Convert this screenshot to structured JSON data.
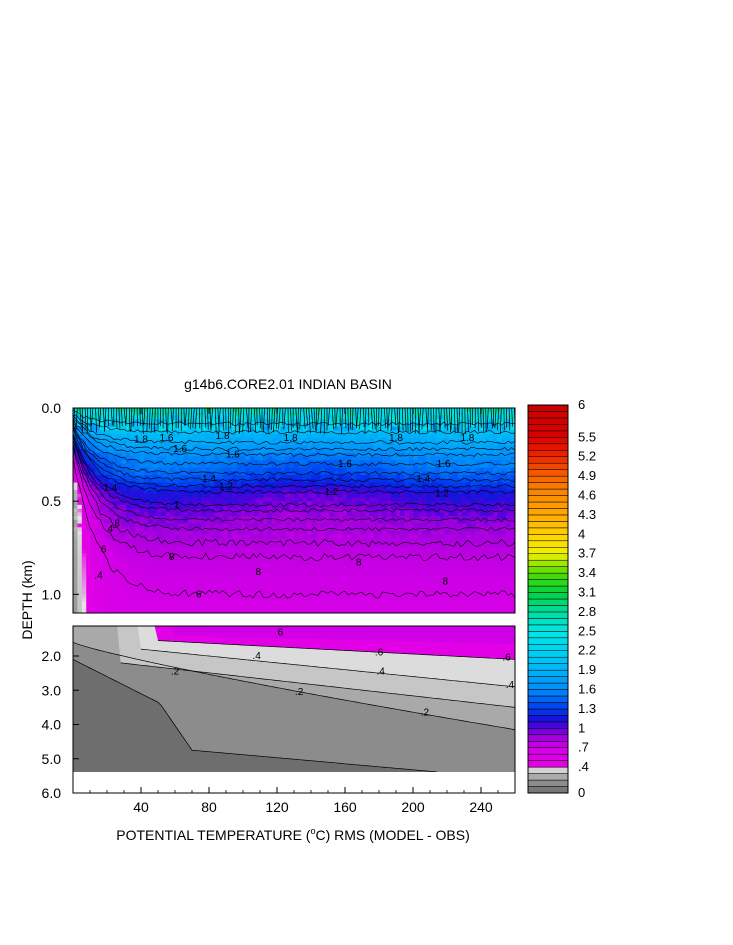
{
  "chart_data": {
    "type": "heatmap",
    "title": "g14b6.CORE2.01 INDIAN BASIN",
    "xlabel_parts": [
      "POTENTIAL TEMPERATURE (",
      "o",
      "C) RMS (MODEL - OBS)"
    ],
    "ylabel": "DEPTH (km)",
    "x_ticks": [
      "40",
      "80",
      "120",
      "160",
      "200",
      "240"
    ],
    "x_tick_values": [
      40,
      80,
      120,
      160,
      200,
      240
    ],
    "xlim": [
      0,
      260
    ],
    "upper_y_ticks": [
      "0.0",
      "0.5",
      "1.0"
    ],
    "upper_y_tick_values": [
      0.0,
      0.5,
      1.0
    ],
    "upper_ylim": [
      0.0,
      1.1
    ],
    "lower_y_ticks": [
      "2.0",
      "3.0",
      "4.0",
      "5.0",
      "6.0"
    ],
    "lower_y_tick_values": [
      2.0,
      3.0,
      4.0,
      5.0,
      6.0
    ],
    "lower_ylim": [
      1.1,
      6.0
    ],
    "colorbar_labels": [
      "6",
      "5.5",
      "5.2",
      "4.9",
      "4.6",
      "4.3",
      "4",
      "3.7",
      "3.4",
      "3.1",
      "2.8",
      "2.5",
      "2.2",
      "1.9",
      "1.6",
      "1.3",
      "1",
      ".7",
      ".4",
      "0"
    ],
    "colorbar_levels": [
      0,
      0.1,
      0.2,
      0.3,
      0.4,
      0.5,
      0.6,
      0.7,
      0.8,
      0.9,
      1.0,
      1.1,
      1.2,
      1.3,
      1.4,
      1.5,
      1.6,
      1.7,
      1.8,
      1.9,
      2.0,
      2.1,
      2.2,
      2.3,
      2.4,
      2.5,
      2.6,
      2.7,
      2.8,
      2.9,
      3.0,
      3.1,
      3.2,
      3.3,
      3.4,
      3.5,
      3.6,
      3.7,
      3.8,
      3.9,
      4.0,
      4.1,
      4.2,
      4.3,
      4.4,
      4.5,
      4.6,
      4.7,
      4.8,
      4.9,
      5.0,
      5.1,
      5.2,
      5.3,
      5.4,
      5.5,
      5.6,
      5.7,
      5.8,
      5.9,
      6.0
    ],
    "upper_profile": [
      {
        "depth": 0.0,
        "value": 2.6
      },
      {
        "depth": 0.06,
        "value": 2.3
      },
      {
        "depth": 0.15,
        "value": 1.9
      },
      {
        "depth": 0.25,
        "value": 1.6
      },
      {
        "depth": 0.35,
        "value": 1.4
      },
      {
        "depth": 0.45,
        "value": 1.1
      },
      {
        "depth": 0.55,
        "value": 0.95
      },
      {
        "depth": 0.65,
        "value": 0.85
      },
      {
        "depth": 0.8,
        "value": 0.75
      },
      {
        "depth": 1.0,
        "value": 0.7
      },
      {
        "depth": 1.1,
        "value": 0.65
      }
    ],
    "upper_contour_labels": [
      {
        "text": "1.8",
        "x": 40,
        "depth": 0.17
      },
      {
        "text": "1.6",
        "x": 55,
        "depth": 0.16
      },
      {
        "text": "1.8",
        "x": 88,
        "depth": 0.15
      },
      {
        "text": "1.6",
        "x": 63,
        "depth": 0.22
      },
      {
        "text": "1.8",
        "x": 128,
        "depth": 0.16
      },
      {
        "text": "1.8",
        "x": 190,
        "depth": 0.16
      },
      {
        "text": "1.8",
        "x": 232,
        "depth": 0.16
      },
      {
        "text": "1.6",
        "x": 94,
        "depth": 0.25
      },
      {
        "text": "1.6",
        "x": 160,
        "depth": 0.3
      },
      {
        "text": "1.6",
        "x": 218,
        "depth": 0.3
      },
      {
        "text": "1.4",
        "x": 80,
        "depth": 0.38
      },
      {
        "text": "1.4",
        "x": 206,
        "depth": 0.38
      },
      {
        "text": "1.2",
        "x": 90,
        "depth": 0.42
      },
      {
        "text": "1.2",
        "x": 152,
        "depth": 0.45
      },
      {
        "text": "1.2",
        "x": 217,
        "depth": 0.46
      },
      {
        "text": "1",
        "x": 61,
        "depth": 0.52
      },
      {
        "text": "8",
        "x": 26,
        "depth": 0.62
      },
      {
        "text": "8",
        "x": 58,
        "depth": 0.8
      },
      {
        "text": "8",
        "x": 109,
        "depth": 0.88
      },
      {
        "text": "8",
        "x": 168,
        "depth": 0.83
      },
      {
        "text": "8",
        "x": 219,
        "depth": 0.93
      },
      {
        "text": "6",
        "x": 18,
        "depth": 0.76
      },
      {
        "text": "6",
        "x": 74,
        "depth": 1.0
      },
      {
        "text": ".4",
        "x": 15,
        "depth": 0.9
      },
      {
        "text": "4",
        "x": 22,
        "depth": 0.65
      },
      {
        "text": "1.4",
        "x": 22,
        "depth": 0.43
      }
    ],
    "lower_contour_labels": [
      {
        "text": ".6",
        "x": 180,
        "depth": 1.9
      },
      {
        "text": ".6",
        "x": 255,
        "depth": 2.05
      },
      {
        "text": ".4",
        "x": 108,
        "depth": 2.0
      },
      {
        "text": ".4",
        "x": 181,
        "depth": 2.45
      },
      {
        "text": ".4",
        "x": 257,
        "depth": 2.85
      },
      {
        "text": ".2",
        "x": 60,
        "depth": 2.45
      },
      {
        "text": ".2",
        "x": 133,
        "depth": 3.05
      },
      {
        "text": ".2",
        "x": 207,
        "depth": 3.65
      },
      {
        "text": "6",
        "x": 122,
        "depth": 1.3
      }
    ]
  },
  "colors": {
    "background": "#ffffff",
    "axis": "#000000"
  }
}
